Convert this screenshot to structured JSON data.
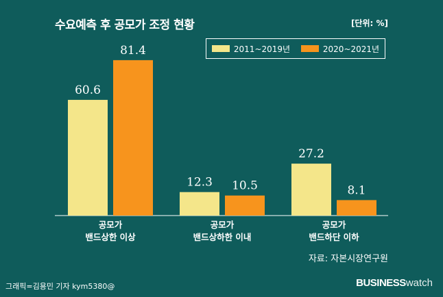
{
  "header": {
    "title": "수요예측 후 공모가 조정 현황",
    "unit": "[단위: %]"
  },
  "footer": {
    "source": "자료: 자본시장연구원",
    "credit": "그래픽=김용민 기자 kym5380@",
    "brand_bold": "BUSINESS",
    "brand_light": "watch"
  },
  "colors": {
    "background": "#0f5c5b",
    "series1": "#f4e68a",
    "series2": "#f7941d"
  },
  "chart_data": {
    "type": "bar",
    "title": "수요예측 후 공모가 조정 현황",
    "ylabel": "",
    "unit": "%",
    "ylim": [
      0,
      100
    ],
    "legend": "top-right",
    "grid": false,
    "categories": [
      [
        "공모가",
        "밴드상한 이상"
      ],
      [
        "공모가",
        "밴드상하한 이내"
      ],
      [
        "공모가",
        "밴드하단 이하"
      ]
    ],
    "series": [
      {
        "name": "2011~2019년",
        "values": [
          60.6,
          12.3,
          27.2
        ]
      },
      {
        "name": "2020~2021년",
        "values": [
          81.4,
          10.5,
          8.1
        ]
      }
    ]
  }
}
